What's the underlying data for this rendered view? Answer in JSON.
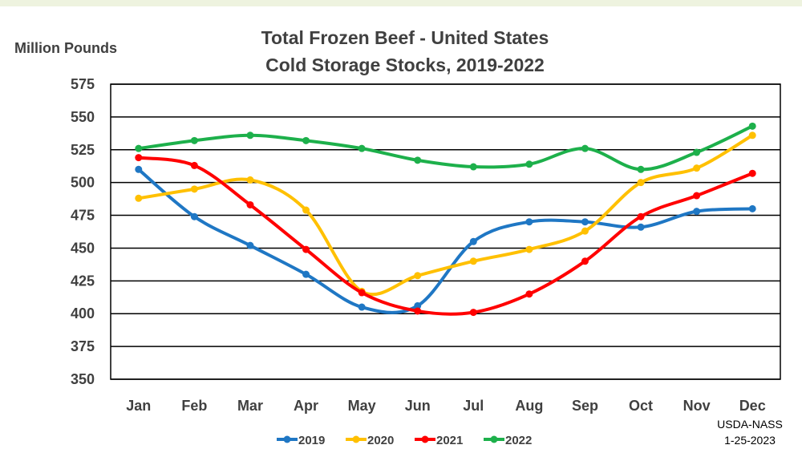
{
  "chart_data": {
    "type": "line",
    "title_line1": "Total Frozen Beef - United States",
    "title_line2": "Cold Storage Stocks, 2019-2022",
    "ylabel": "Million Pounds",
    "xlabel": "",
    "ylim": [
      350,
      575
    ],
    "yticks": [
      350,
      375,
      400,
      425,
      450,
      475,
      500,
      525,
      550,
      575
    ],
    "categories": [
      "Jan",
      "Feb",
      "Mar",
      "Apr",
      "May",
      "Jun",
      "Jul",
      "Aug",
      "Sep",
      "Oct",
      "Nov",
      "Dec"
    ],
    "grid": "horizontal",
    "legend_position": "bottom",
    "series": [
      {
        "name": "2019",
        "color": "#1f77c4",
        "values": [
          510,
          474,
          452,
          430,
          405,
          406,
          455,
          470,
          470,
          466,
          478,
          480
        ]
      },
      {
        "name": "2020",
        "color": "#ffc000",
        "values": [
          488,
          495,
          502,
          479,
          417,
          429,
          440,
          449,
          463,
          500,
          511,
          536
        ]
      },
      {
        "name": "2021",
        "color": "#ff0000",
        "values": [
          519,
          513,
          483,
          449,
          416,
          402,
          401,
          415,
          440,
          474,
          490,
          507
        ]
      },
      {
        "name": "2022",
        "color": "#1db04b",
        "values": [
          526,
          532,
          536,
          532,
          526,
          517,
          512,
          514,
          526,
          510,
          523,
          543
        ]
      }
    ],
    "source_line1": "USDA-NASS",
    "source_line2": "1-25-2023"
  }
}
